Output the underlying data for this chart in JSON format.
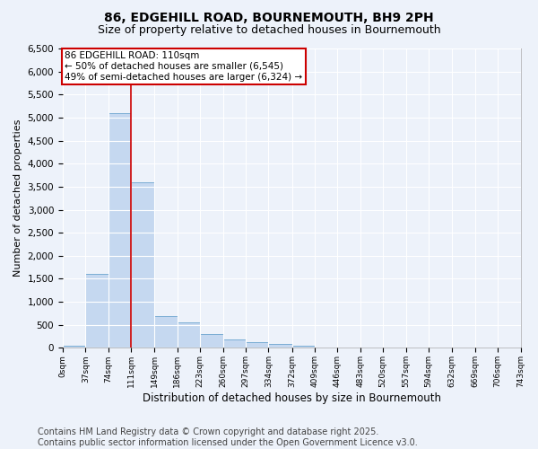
{
  "title": "86, EDGEHILL ROAD, BOURNEMOUTH, BH9 2PH",
  "subtitle": "Size of property relative to detached houses in Bournemouth",
  "xlabel": "Distribution of detached houses by size in Bournemouth",
  "ylabel": "Number of detached properties",
  "bin_edges": [
    0,
    37,
    74,
    111,
    149,
    186,
    223,
    260,
    297,
    334,
    372,
    409,
    446,
    483,
    520,
    557,
    594,
    632,
    669,
    706,
    743
  ],
  "bin_labels": [
    "0sqm",
    "37sqm",
    "74sqm",
    "111sqm",
    "149sqm",
    "186sqm",
    "223sqm",
    "260sqm",
    "297sqm",
    "334sqm",
    "372sqm",
    "409sqm",
    "446sqm",
    "483sqm",
    "520sqm",
    "557sqm",
    "594sqm",
    "632sqm",
    "669sqm",
    "706sqm",
    "743sqm"
  ],
  "bar_heights": [
    50,
    1600,
    5100,
    3600,
    700,
    560,
    310,
    180,
    130,
    80,
    50,
    0,
    0,
    0,
    0,
    0,
    0,
    0,
    0,
    0
  ],
  "bar_color": "#c5d8f0",
  "bar_edge_color": "#7aadd4",
  "vline_x": 111,
  "vline_color": "#cc0000",
  "ylim": [
    0,
    6500
  ],
  "yticks": [
    0,
    500,
    1000,
    1500,
    2000,
    2500,
    3000,
    3500,
    4000,
    4500,
    5000,
    5500,
    6000,
    6500
  ],
  "background_color": "#edf2fa",
  "grid_color": "#ffffff",
  "annotation_text": "86 EDGEHILL ROAD: 110sqm\n← 50% of detached houses are smaller (6,545)\n49% of semi-detached houses are larger (6,324) →",
  "annotation_box_color": "#ffffff",
  "annotation_box_edge_color": "#cc0000",
  "footer_line1": "Contains HM Land Registry data © Crown copyright and database right 2025.",
  "footer_line2": "Contains public sector information licensed under the Open Government Licence v3.0.",
  "title_fontsize": 10,
  "subtitle_fontsize": 9,
  "ylabel_fontsize": 8,
  "xlabel_fontsize": 8.5,
  "footer_fontsize": 7,
  "annotation_fontsize": 7.5
}
